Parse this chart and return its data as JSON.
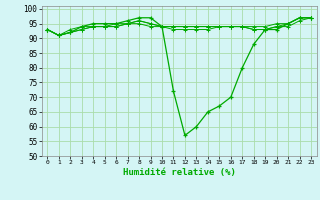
{
  "background_color": "#d4f5f5",
  "grid_color": "#aaddaa",
  "line_color": "#00aa00",
  "marker_color": "#00aa00",
  "xlabel": "Humidité relative (%)",
  "xlabel_color": "#00aa00",
  "ylim": [
    50,
    101
  ],
  "xlim": [
    -0.5,
    23.5
  ],
  "yticks": [
    50,
    55,
    60,
    65,
    70,
    75,
    80,
    85,
    90,
    95,
    100
  ],
  "xtick_labels": [
    "0",
    "1",
    "2",
    "3",
    "4",
    "5",
    "6",
    "7",
    "8",
    "9",
    "10",
    "11",
    "12",
    "13",
    "14",
    "15",
    "16",
    "17",
    "18",
    "19",
    "20",
    "21",
    "22",
    "23"
  ],
  "series": [
    [
      93,
      91,
      92,
      94,
      95,
      95,
      95,
      96,
      97,
      97,
      94,
      72,
      57,
      60,
      65,
      67,
      70,
      80,
      88,
      93,
      93,
      95,
      97,
      97
    ],
    [
      93,
      91,
      93,
      94,
      94,
      94,
      95,
      95,
      96,
      95,
      94,
      94,
      94,
      94,
      94,
      94,
      94,
      94,
      94,
      94,
      95,
      95,
      97,
      97
    ],
    [
      93,
      91,
      92,
      93,
      94,
      94,
      94,
      95,
      96,
      95,
      94,
      94,
      94,
      94,
      94,
      94,
      94,
      94,
      93,
      93,
      94,
      95,
      97,
      97
    ],
    [
      93,
      91,
      92,
      93,
      94,
      94,
      94,
      95,
      95,
      94,
      94,
      93,
      93,
      93,
      93,
      94,
      94,
      94,
      93,
      93,
      94,
      94,
      96,
      97
    ]
  ]
}
